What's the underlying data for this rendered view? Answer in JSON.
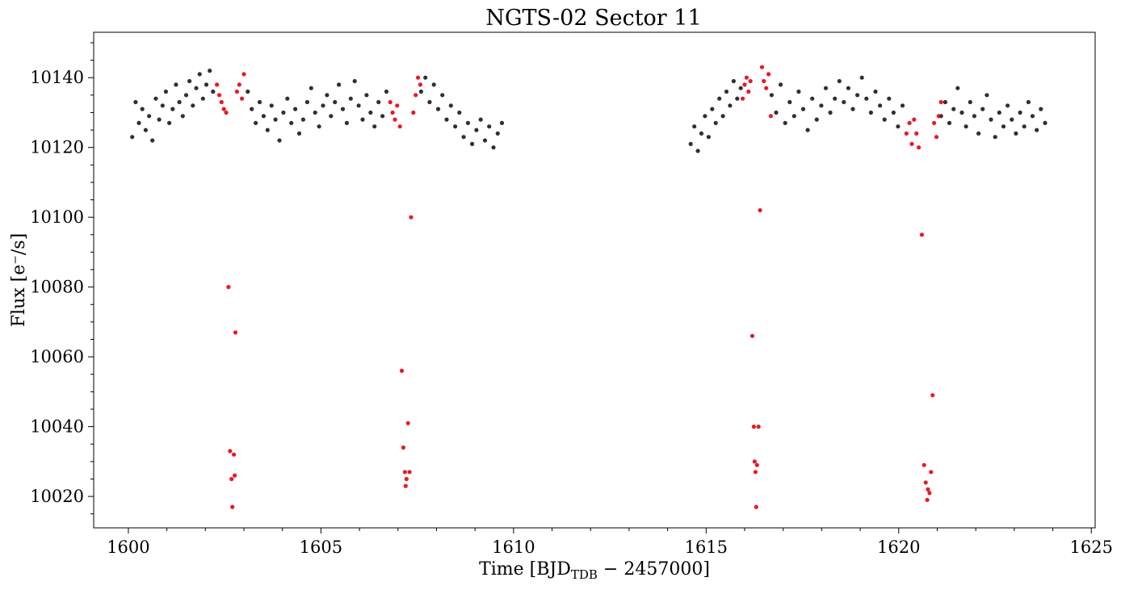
{
  "chart_data": {
    "type": "scatter",
    "title": "NGTS-02 Sector 11",
    "xlabel": {
      "pre": "Time [BJD",
      "sub": "TDB",
      "post": " − 2457000]"
    },
    "ylabel": "Flux [e⁻/s]",
    "xlim": [
      1599.1,
      1625.1
    ],
    "ylim": [
      10011,
      10153
    ],
    "xticks": [
      1600,
      1605,
      1610,
      1615,
      1620,
      1625
    ],
    "yticks": [
      10020,
      10040,
      10060,
      10080,
      10100,
      10120,
      10140
    ],
    "grid": false,
    "legend": "none",
    "series": [
      {
        "color": "#1a1a1a",
        "segments": [
          {
            "x_start": 1600.1,
            "x_end": 1602.2,
            "flux": [
              10123,
              10133,
              10127,
              10131,
              10125,
              10129,
              10122,
              10134,
              10128,
              10132,
              10136,
              10127,
              10131,
              10138,
              10133,
              10129,
              10135,
              10139,
              10132,
              10137,
              10141,
              10134,
              10138,
              10142,
              10136
            ]
          },
          {
            "x_start": 1603.1,
            "x_end": 1606.7,
            "flux": [
              10136,
              10131,
              10127,
              10133,
              10129,
              10125,
              10132,
              10128,
              10122,
              10130,
              10134,
              10127,
              10131,
              10124,
              10128,
              10133,
              10137,
              10130,
              10126,
              10132,
              10135,
              10129,
              10133,
              10138,
              10131,
              10127,
              10134,
              10139,
              10132,
              10128,
              10135,
              10130,
              10126,
              10133,
              10129,
              10136
            ]
          },
          {
            "x_start": 1607.6,
            "x_end": 1609.7,
            "flux": [
              10136,
              10140,
              10133,
              10138,
              10131,
              10135,
              10128,
              10132,
              10126,
              10130,
              10123,
              10127,
              10121,
              10125,
              10128,
              10122,
              10126,
              10120,
              10124,
              10127
            ]
          },
          {
            "x_start": 1614.6,
            "x_end": 1615.9,
            "flux": [
              10121,
              10126,
              10119,
              10124,
              10129,
              10123,
              10131,
              10127,
              10134,
              10129,
              10136,
              10132,
              10139,
              10134,
              10137
            ]
          },
          {
            "x_start": 1616.7,
            "x_end": 1620.1,
            "flux": [
              10135,
              10130,
              10138,
              10127,
              10133,
              10129,
              10136,
              10131,
              10125,
              10134,
              10128,
              10132,
              10137,
              10130,
              10134,
              10139,
              10133,
              10137,
              10131,
              10135,
              10140,
              10134,
              10130,
              10136,
              10132,
              10128,
              10134,
              10130,
              10126,
              10132
            ]
          },
          {
            "x_start": 1621.1,
            "x_end": 1623.8,
            "flux": [
              10129,
              10133,
              10127,
              10131,
              10137,
              10130,
              10126,
              10133,
              10129,
              10124,
              10131,
              10135,
              10128,
              10123,
              10130,
              10126,
              10132,
              10128,
              10124,
              10130,
              10126,
              10133,
              10129,
              10125,
              10131,
              10127
            ]
          }
        ]
      },
      {
        "color": "#e8000b",
        "points": [
          [
            1602.3,
            10138
          ],
          [
            1602.36,
            10135
          ],
          [
            1602.42,
            10133
          ],
          [
            1602.48,
            10131
          ],
          [
            1602.54,
            10130
          ],
          [
            1602.6,
            10080
          ],
          [
            1602.64,
            10033
          ],
          [
            1602.68,
            10025
          ],
          [
            1602.7,
            10017
          ],
          [
            1602.74,
            10032
          ],
          [
            1602.76,
            10026
          ],
          [
            1602.78,
            10067
          ],
          [
            1602.82,
            10136
          ],
          [
            1602.88,
            10138
          ],
          [
            1602.95,
            10134
          ],
          [
            1603.0,
            10141
          ],
          [
            1606.8,
            10133
          ],
          [
            1606.86,
            10130
          ],
          [
            1606.92,
            10128
          ],
          [
            1606.98,
            10132
          ],
          [
            1607.05,
            10126
          ],
          [
            1607.1,
            10056
          ],
          [
            1607.14,
            10034
          ],
          [
            1607.18,
            10027
          ],
          [
            1607.2,
            10023
          ],
          [
            1607.22,
            10025
          ],
          [
            1607.26,
            10041
          ],
          [
            1607.3,
            10027
          ],
          [
            1607.34,
            10100
          ],
          [
            1607.4,
            10130
          ],
          [
            1607.46,
            10135
          ],
          [
            1607.52,
            10140
          ],
          [
            1607.58,
            10138
          ],
          [
            1615.95,
            10134
          ],
          [
            1616.0,
            10138
          ],
          [
            1616.05,
            10140
          ],
          [
            1616.1,
            10136
          ],
          [
            1616.15,
            10139
          ],
          [
            1616.2,
            10066
          ],
          [
            1616.24,
            10040
          ],
          [
            1616.26,
            10030
          ],
          [
            1616.28,
            10027
          ],
          [
            1616.3,
            10017
          ],
          [
            1616.32,
            10029
          ],
          [
            1616.36,
            10040
          ],
          [
            1616.4,
            10102
          ],
          [
            1616.45,
            10143
          ],
          [
            1616.5,
            10139
          ],
          [
            1616.56,
            10137
          ],
          [
            1616.62,
            10141
          ],
          [
            1616.68,
            10129
          ],
          [
            1620.2,
            10124
          ],
          [
            1620.28,
            10127
          ],
          [
            1620.34,
            10121
          ],
          [
            1620.4,
            10128
          ],
          [
            1620.46,
            10124
          ],
          [
            1620.52,
            10120
          ],
          [
            1620.6,
            10095
          ],
          [
            1620.66,
            10029
          ],
          [
            1620.7,
            10024
          ],
          [
            1620.74,
            10019
          ],
          [
            1620.76,
            10022
          ],
          [
            1620.8,
            10021
          ],
          [
            1620.84,
            10027
          ],
          [
            1620.88,
            10049
          ],
          [
            1620.92,
            10127
          ],
          [
            1620.98,
            10123
          ],
          [
            1621.04,
            10129
          ],
          [
            1621.1,
            10133
          ]
        ]
      }
    ]
  }
}
